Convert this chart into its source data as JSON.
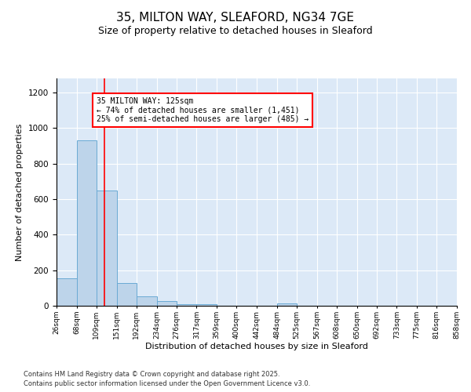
{
  "title": "35, MILTON WAY, SLEAFORD, NG34 7GE",
  "subtitle": "Size of property relative to detached houses in Sleaford",
  "xlabel": "Distribution of detached houses by size in Sleaford",
  "ylabel": "Number of detached properties",
  "footnote1": "Contains HM Land Registry data © Crown copyright and database right 2025.",
  "footnote2": "Contains public sector information licensed under the Open Government Licence v3.0.",
  "bar_edges": [
    26,
    68,
    109,
    151,
    192,
    234,
    276,
    317,
    359,
    400,
    442,
    484,
    525,
    567,
    608,
    650,
    692,
    733,
    775,
    816,
    858
  ],
  "bar_heights": [
    155,
    930,
    650,
    130,
    55,
    25,
    10,
    7,
    0,
    0,
    0,
    15,
    0,
    0,
    0,
    0,
    0,
    0,
    0,
    0
  ],
  "bar_color": "#bdd4ea",
  "bar_edgecolor": "#6aaad4",
  "background_color": "#dce9f7",
  "red_line_x": 125,
  "red_line_color": "red",
  "annotation_box_text": "35 MILTON WAY: 125sqm\n← 74% of detached houses are smaller (1,451)\n25% of semi-detached houses are larger (485) →",
  "ylim": [
    0,
    1280
  ],
  "yticks": [
    0,
    200,
    400,
    600,
    800,
    1000,
    1200
  ],
  "tick_labels": [
    "26sqm",
    "68sqm",
    "109sqm",
    "151sqm",
    "192sqm",
    "234sqm",
    "276sqm",
    "317sqm",
    "359sqm",
    "400sqm",
    "442sqm",
    "484sqm",
    "525sqm",
    "567sqm",
    "608sqm",
    "650sqm",
    "692sqm",
    "733sqm",
    "775sqm",
    "816sqm",
    "858sqm"
  ]
}
